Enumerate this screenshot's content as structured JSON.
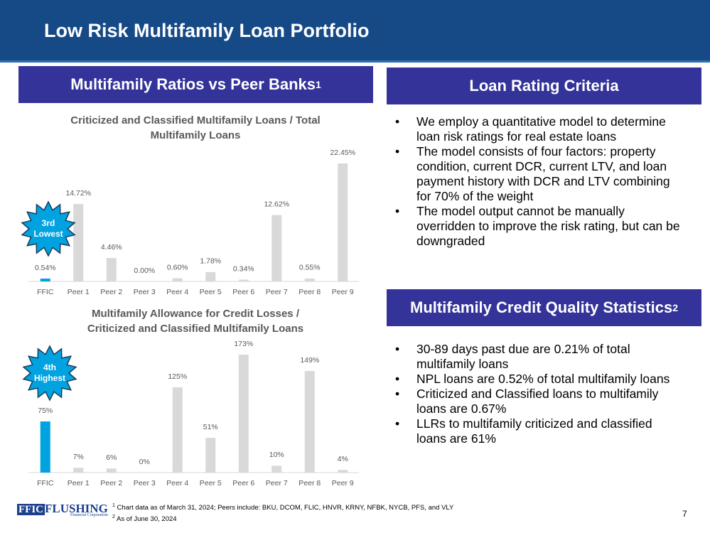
{
  "header": {
    "title": "Low Risk Multifamily Loan Portfolio"
  },
  "left": {
    "heading": "Multifamily Ratios vs Peer Banks",
    "heading_note": "1"
  },
  "chart_data": [
    {
      "type": "bar",
      "title": "Criticized and Classified Multifamily Loans / Total Multifamily Loans",
      "categories": [
        "FFIC",
        "Peer 1",
        "Peer 2",
        "Peer 3",
        "Peer 4",
        "Peer 5",
        "Peer 6",
        "Peer 7",
        "Peer 8",
        "Peer 9"
      ],
      "values": [
        0.54,
        14.72,
        4.46,
        0.0,
        0.6,
        1.78,
        0.34,
        12.62,
        0.55,
        22.45
      ],
      "value_labels": [
        "0.54%",
        "14.72%",
        "4.46%",
        "0.00%",
        "0.60%",
        "1.78%",
        "0.34%",
        "12.62%",
        "0.55%",
        "22.45%"
      ],
      "colors": [
        "#00a3e0",
        "#d9d9d9",
        "#d9d9d9",
        "#d9d9d9",
        "#d9d9d9",
        "#d9d9d9",
        "#d9d9d9",
        "#d9d9d9",
        "#d9d9d9",
        "#d9d9d9"
      ],
      "badge": "3rd Lowest"
    },
    {
      "type": "bar",
      "title": "Multifamily Allowance for Credit Losses / Criticized and Classified Multifamily Loans",
      "categories": [
        "FFIC",
        "Peer 1",
        "Peer 2",
        "Peer 3",
        "Peer 4",
        "Peer 5",
        "Peer 6",
        "Peer 7",
        "Peer 8",
        "Peer 9"
      ],
      "values": [
        75,
        7,
        6,
        0,
        125,
        51,
        173,
        10,
        149,
        4
      ],
      "value_labels": [
        "75%",
        "7%",
        "6%",
        "0%",
        "125%",
        "51%",
        "173%",
        "10%",
        "149%",
        "4%"
      ],
      "colors": [
        "#00a3e0",
        "#d9d9d9",
        "#d9d9d9",
        "#d9d9d9",
        "#d9d9d9",
        "#d9d9d9",
        "#d9d9d9",
        "#d9d9d9",
        "#d9d9d9",
        "#d9d9d9"
      ],
      "badge": "4th Highest"
    }
  ],
  "right": {
    "criteria": {
      "heading": "Loan Rating Criteria",
      "bullets": [
        "We employ a quantitative model to determine loan risk ratings for real estate loans",
        "The model consists of four factors: property condition, current DCR, current LTV, and loan payment history with DCR and LTV combining for 70% of the weight",
        "The model output cannot be manually overridden to improve the risk rating, but can be downgraded"
      ]
    },
    "stats": {
      "heading": "Multifamily Credit Quality Statistics",
      "heading_note": "2",
      "bullets": [
        "30-89 days past due are 0.21% of total multifamily loans",
        "NPL loans are 0.52% of total multifamily loans",
        "Criticized and Classified loans to multifamily loans are 0.67%",
        "LLRs to multifamily criticized and classified loans are 61%"
      ]
    }
  },
  "footer": {
    "logo": {
      "mark": "FFIC",
      "name": "FLUSHING",
      "sub": "Financial Corporation"
    },
    "notes": [
      {
        "mark": "1",
        "text": "Chart data as of March 31, 2024; Peers include: BKU, DCOM, FLIC, HNVR, KRNY, NFBK, NYCB, PFS, and VLY"
      },
      {
        "mark": "2",
        "text": "As of June 30, 2024"
      }
    ],
    "page": "7"
  }
}
